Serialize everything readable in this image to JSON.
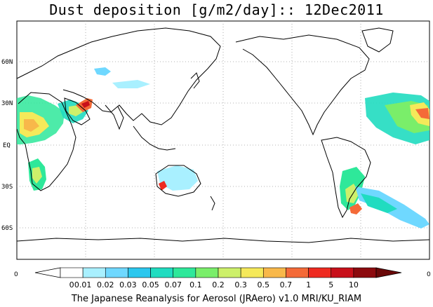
{
  "title": "Dust deposition [g/m2/day]:: 12Dec2011",
  "latitude_labels": [
    "60N",
    "30N",
    "EQ",
    "30S",
    "60S"
  ],
  "colorbar": {
    "edge_min": "0",
    "edge_max": "0",
    "bins": [
      {
        "label": "0",
        "color": "#ffffff"
      },
      {
        "label": "0.01",
        "color": "#a9f0ff"
      },
      {
        "label": "0.02",
        "color": "#6fd8ff"
      },
      {
        "label": "0.03",
        "color": "#2bc7ee"
      },
      {
        "label": "0.05",
        "color": "#20dcc0"
      },
      {
        "label": "0.07",
        "color": "#2ee89a"
      },
      {
        "label": "0.1",
        "color": "#7aee6a"
      },
      {
        "label": "0.2",
        "color": "#cdf06a"
      },
      {
        "label": "0.3",
        "color": "#f5e95a"
      },
      {
        "label": "0.5",
        "color": "#f8b84a"
      },
      {
        "label": "0.7",
        "color": "#f46a38"
      },
      {
        "label": "1",
        "color": "#ee2a20"
      },
      {
        "label": "5",
        "color": "#c8101a"
      },
      {
        "label": "10",
        "color": "#8c0a0e"
      }
    ],
    "under_color": "#ffffff",
    "over_color": "#6a0808"
  },
  "credit": "The Japanese Reanalysis for Aerosol (JRAero) v1.0 MRI/KU_RIAM"
}
